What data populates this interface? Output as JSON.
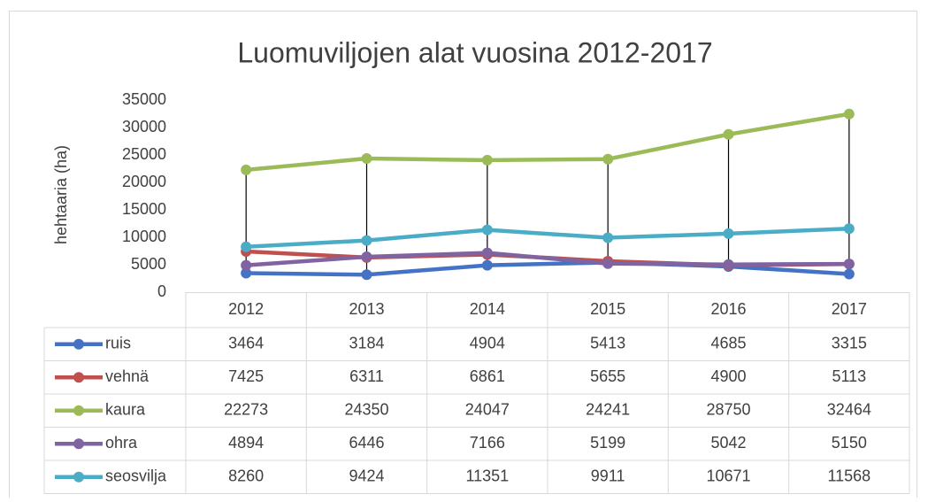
{
  "chart_data": {
    "type": "line",
    "title": "Luomuviljojen alat vuosina 2012-2017",
    "y_label": "hehtaaria (ha)",
    "categories": [
      "2012",
      "2013",
      "2014",
      "2015",
      "2016",
      "2017"
    ],
    "series": [
      {
        "name": "ruis",
        "color": "#4472c4",
        "values": [
          3464,
          3184,
          4904,
          5413,
          4685,
          3315
        ]
      },
      {
        "name": "vehnä",
        "color": "#c0504d",
        "values": [
          7425,
          6311,
          6861,
          5655,
          4900,
          5113
        ]
      },
      {
        "name": "kaura",
        "color": "#9bbb59",
        "values": [
          22273,
          24350,
          24047,
          24241,
          28750,
          32464
        ]
      },
      {
        "name": "ohra",
        "color": "#8064a2",
        "values": [
          4894,
          6446,
          7166,
          5199,
          5042,
          5150
        ]
      },
      {
        "name": "seosvilja",
        "color": "#4bacc6",
        "values": [
          8260,
          9424,
          11351,
          9911,
          10671,
          11568
        ]
      }
    ],
    "ylim": [
      0,
      35000
    ],
    "yticks": [
      0,
      5000,
      10000,
      15000,
      20000,
      25000,
      30000,
      35000
    ],
    "high_low_lines": true,
    "data_table": true
  }
}
